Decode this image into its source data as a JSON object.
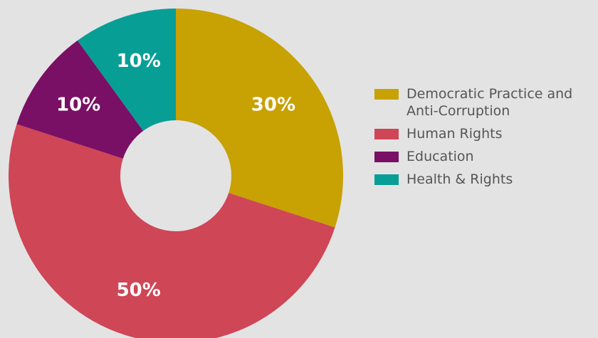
{
  "chart_data": {
    "type": "pie",
    "donut": true,
    "categories": [
      "Democratic Practice and Anti-Corruption",
      "Human Rights",
      "Education",
      "Health & Rights"
    ],
    "values": [
      30,
      50,
      10,
      10
    ],
    "value_labels": [
      "30%",
      "50%",
      "10%",
      "10%"
    ],
    "colors": [
      "#c8a103",
      "#cf4656",
      "#7a0f66",
      "#079e96"
    ],
    "start": "top",
    "direction": "clockwise",
    "legend_position": "right"
  }
}
